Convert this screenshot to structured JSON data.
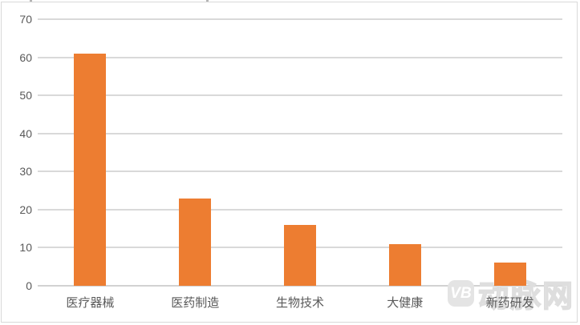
{
  "chart_data": {
    "type": "bar",
    "categories": [
      "医疗器械",
      "医药制造",
      "生物技术",
      "大健康",
      "新药研发"
    ],
    "values": [
      61,
      23,
      16,
      11,
      6
    ],
    "title": "",
    "xlabel": "",
    "ylabel": "",
    "ylim": [
      0,
      70
    ],
    "yticks": [
      0,
      10,
      20,
      30,
      40,
      50,
      60,
      70
    ],
    "grid": true,
    "legend": "none",
    "bar_color": "#ed7d31",
    "gridline_color": "#d9d9d9",
    "axis_text_color": "#595959"
  },
  "watermark": {
    "logo_text": "VB",
    "brand_text": "动脉网"
  }
}
